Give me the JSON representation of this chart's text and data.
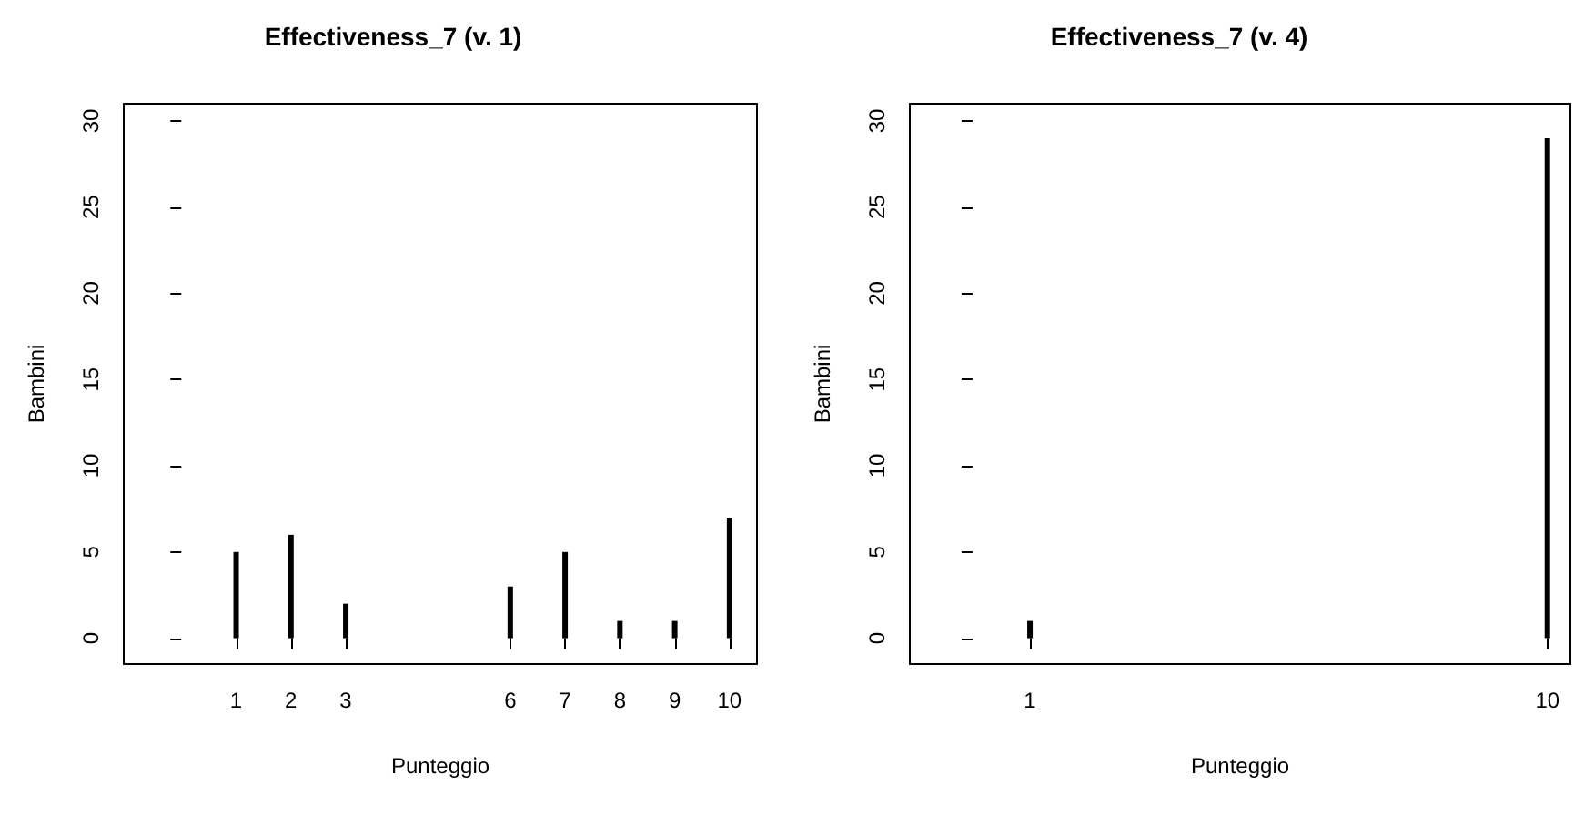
{
  "chart_data": [
    {
      "type": "bar",
      "title": "Effectiveness_7 (v. 1)",
      "xlabel": "Punteggio",
      "ylabel": "Bambini",
      "x": [
        1,
        2,
        3,
        6,
        7,
        8,
        9,
        10
      ],
      "values": [
        5,
        6,
        2,
        3,
        5,
        1,
        1,
        7
      ],
      "color": "#000000",
      "xlim": [
        -1.05,
        10.5
      ],
      "xticks": [
        1,
        2,
        3,
        6,
        7,
        8,
        9,
        10
      ],
      "ylim": [
        -1.5,
        31
      ],
      "yticks": [
        0,
        5,
        10,
        15,
        20,
        25,
        30
      ],
      "grid": false
    },
    {
      "type": "bar",
      "title": "Effectiveness_7 (v. 4)",
      "xlabel": "Punteggio",
      "ylabel": "Bambini",
      "x": [
        1,
        10
      ],
      "values": [
        1,
        29
      ],
      "color": "#000000",
      "xlim": [
        -1.09,
        10.4
      ],
      "xticks": [
        1,
        10
      ],
      "ylim": [
        -1.5,
        31
      ],
      "yticks": [
        0,
        5,
        10,
        15,
        20,
        25,
        30
      ],
      "grid": false
    }
  ]
}
